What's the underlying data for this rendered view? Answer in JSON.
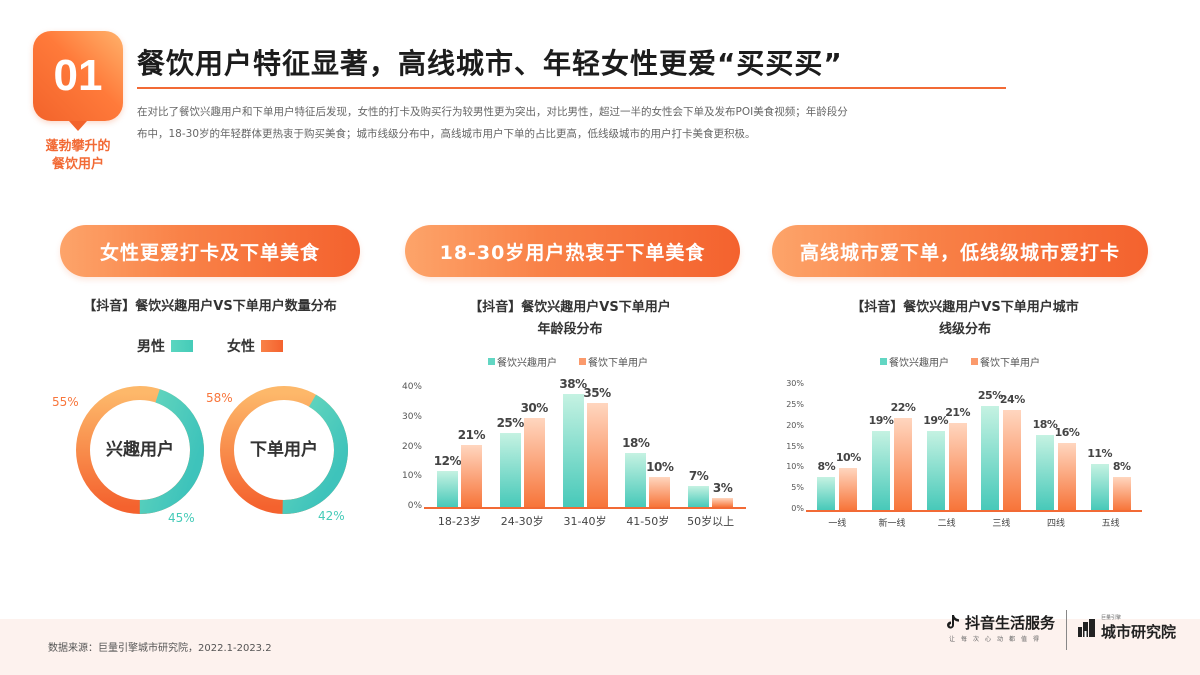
{
  "header": {
    "badge_number": "01",
    "badge_subtitle_line1": "蓬勃攀升的",
    "badge_subtitle_line2": "餐饮用户",
    "title": "餐饮用户特征显著，高线城市、年轻女性更爱“买买买”",
    "intro_line1": "在对比了餐饮兴趣用户和下单用户特征后发现，女性的打卡及购买行为较男性更为突出，对比男性，超过一半的女性会下单及发布POI美食视频；年龄段分",
    "intro_line2": "布中，18-30岁的年轻群体更热衷于购买美食；城市线级分布中，高线城市用户下单的占比更高，低线级城市的用户打卡美食更积极。"
  },
  "colors": {
    "accent_orange": "#f26a35",
    "teal": "#45cbb8",
    "orange": "#f8763c"
  },
  "sections": [
    {
      "pill": "女性更爱打卡及下单美食",
      "chart_title_line1": "【抖音】餐饮兴趣用户VS下单用户数量分布",
      "chart_title_line2": ""
    },
    {
      "pill": "18-30岁用户热衷于下单美食",
      "chart_title_line1": "【抖音】餐饮兴趣用户VS下单用户",
      "chart_title_line2": "年龄段分布"
    },
    {
      "pill": "高线城市爱下单，低线级城市爱打卡",
      "chart_title_line1": "【抖音】餐饮兴趣用户VS下单用户城市",
      "chart_title_line2": "线级分布"
    }
  ],
  "legend_gender": {
    "male": "男性",
    "female": "女性"
  },
  "legend_users": {
    "interest": "餐饮兴趣用户",
    "order": "餐饮下单用户"
  },
  "chart_data": [
    {
      "type": "pie",
      "title": "【抖音】餐饮兴趣用户VS下单用户数量分布",
      "legend": [
        "男性",
        "女性"
      ],
      "donuts": [
        {
          "label": "兴趣用户",
          "male": 45,
          "female": 55,
          "male_label": "45%",
          "female_label": "55%"
        },
        {
          "label": "下单用户",
          "male": 42,
          "female": 58,
          "male_label": "42%",
          "female_label": "58%"
        }
      ]
    },
    {
      "type": "bar",
      "title": "【抖音】餐饮兴趣用户VS下单用户年龄段分布",
      "categories": [
        "18-23岁",
        "24-30岁",
        "31-40岁",
        "41-50岁",
        "50岁以上"
      ],
      "series": [
        {
          "name": "餐饮兴趣用户",
          "values": [
            12,
            25,
            38,
            18,
            7
          ]
        },
        {
          "name": "餐饮下单用户",
          "values": [
            21,
            30,
            35,
            10,
            3
          ]
        }
      ],
      "yticks": [
        "0%",
        "10%",
        "20%",
        "30%",
        "40%"
      ],
      "ylim": [
        0,
        40
      ],
      "grid": false,
      "legend_position": "top"
    },
    {
      "type": "bar",
      "title": "【抖音】餐饮兴趣用户VS下单用户城市线级分布",
      "categories": [
        "一线",
        "新一线",
        "二线",
        "三线",
        "四线",
        "五线"
      ],
      "series": [
        {
          "name": "餐饮兴趣用户",
          "values": [
            8,
            19,
            19,
            25,
            18,
            11
          ]
        },
        {
          "name": "餐饮下单用户",
          "values": [
            10,
            22,
            21,
            24,
            16,
            8
          ]
        }
      ],
      "yticks": [
        "0%",
        "5%",
        "10%",
        "15%",
        "20%",
        "25%",
        "30%"
      ],
      "ylim": [
        0,
        30
      ],
      "grid": false,
      "legend_position": "top"
    }
  ],
  "footer": {
    "source": "数据来源：巨量引擎城市研究院，2022.1-2023.2",
    "logo1_name": "抖音生活服务",
    "logo1_slogan": "让每次心动都值得",
    "logo2_tiny": "巨量引擎",
    "logo2_name": "城市研究院"
  }
}
